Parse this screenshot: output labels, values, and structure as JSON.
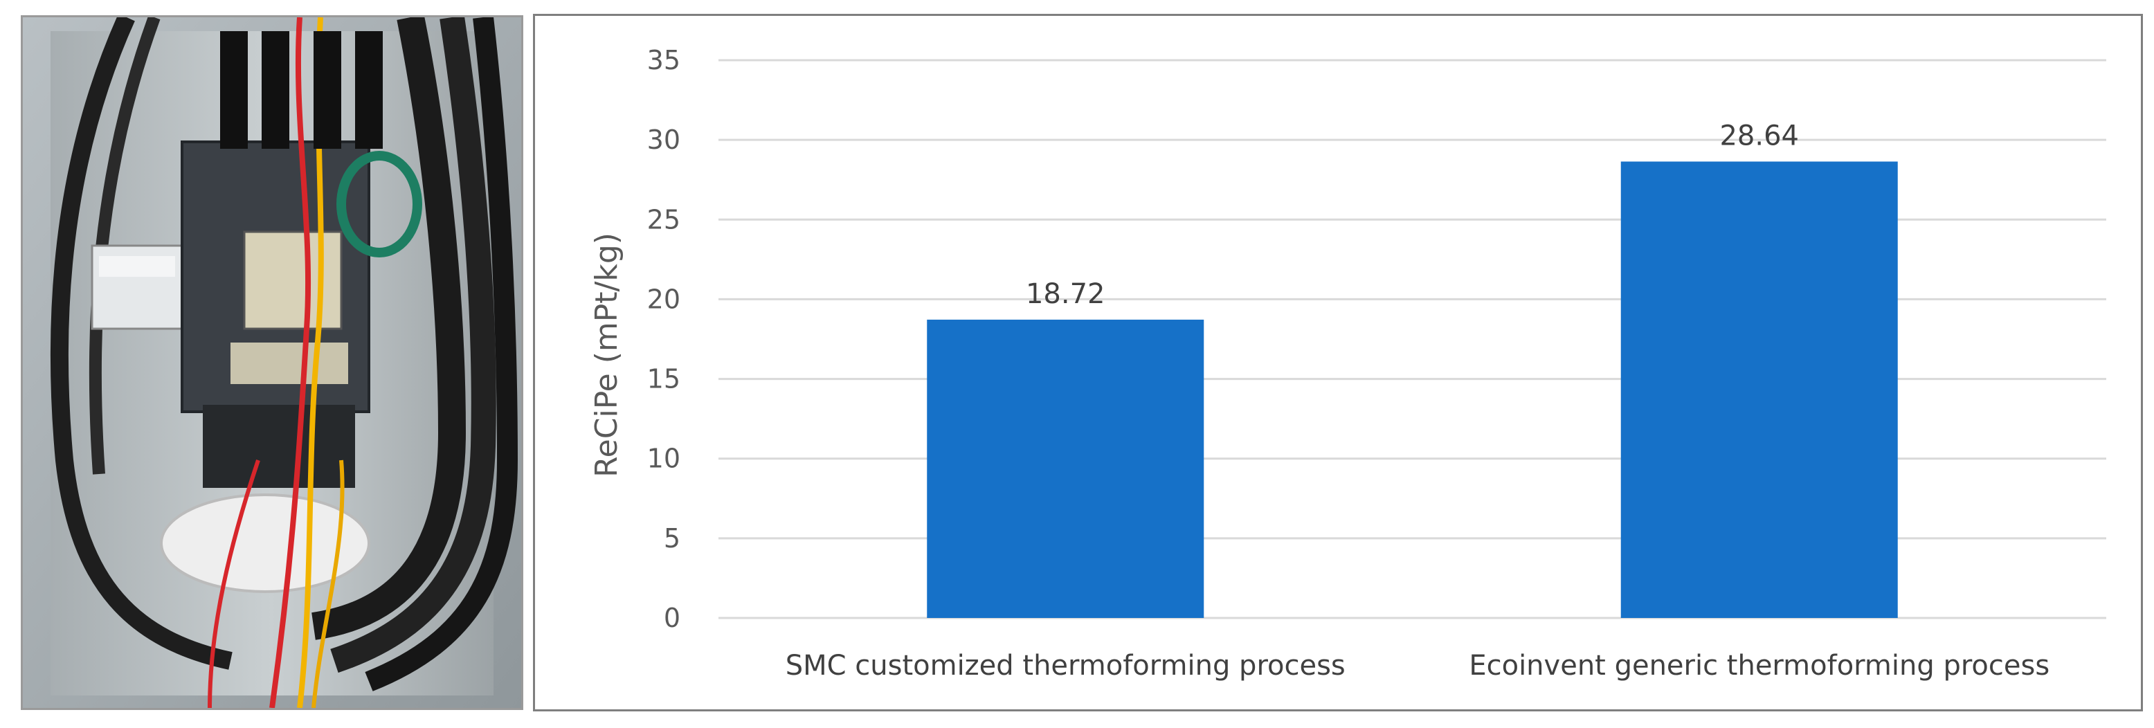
{
  "photo": {
    "subject": "electrical-cabinet-with-energy-meter"
  },
  "colors": {
    "bar": "#1671C8",
    "grid": "#D9D9D9",
    "frame": "#7F7F7F"
  },
  "chart_data": {
    "type": "bar",
    "title": "",
    "xlabel": "",
    "ylabel": "ReCiPe (mPt/kg)",
    "categories": [
      "SMC customized thermoforming  process",
      "Ecoinvent generic thermoforming process"
    ],
    "values": [
      18.72,
      28.64
    ],
    "data_labels": [
      "18.72",
      "28.64"
    ],
    "ylim": [
      0,
      35
    ],
    "yticks": [
      0,
      5,
      10,
      15,
      20,
      25,
      30,
      35
    ],
    "grid": true,
    "legend": "none"
  }
}
